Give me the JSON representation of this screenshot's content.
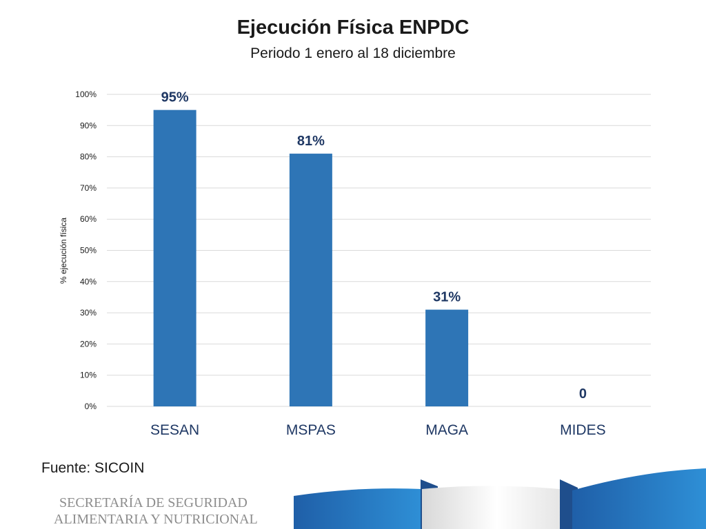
{
  "header": {
    "title": "Ejecución Física ENPDC",
    "subtitle": "Periodo 1 enero al 18 diciembre"
  },
  "footer": {
    "source": "Fuente: SICOIN",
    "org_line1": "SECRETARÍA DE SEGURIDAD",
    "org_line2": "ALIMENTARIA Y NUTRICIONAL"
  },
  "colors": {
    "bar": "#2E75B6",
    "data_label": "#1F3864",
    "grid": "#D9D9D9",
    "deco_dark": "#1F5FA8",
    "deco_light": "#5BA3DB"
  },
  "chart_data": {
    "type": "bar",
    "title": "Ejecución Física ENPDC",
    "subtitle": "Periodo 1 enero al 18 diciembre",
    "xlabel": "",
    "ylabel": "% ejecución física",
    "categories": [
      "SESAN",
      "MSPAS",
      "MAGA",
      "MIDES"
    ],
    "values": [
      95,
      81,
      31,
      0
    ],
    "data_labels": [
      "95%",
      "81%",
      "31%",
      "0"
    ],
    "yticks": [
      "0%",
      "10%",
      "20%",
      "30%",
      "40%",
      "50%",
      "60%",
      "70%",
      "80%",
      "90%",
      "100%"
    ],
    "ylim": [
      0,
      100
    ],
    "grid": true,
    "legend": "none"
  }
}
